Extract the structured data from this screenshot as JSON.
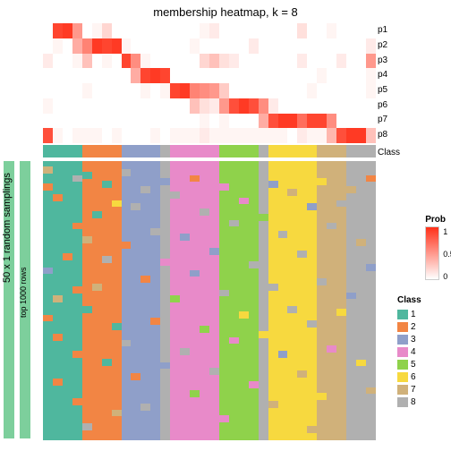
{
  "title": "membership heatmap, k = 8",
  "rowLabels": [
    "p1",
    "p2",
    "p3",
    "p4",
    "p5",
    "p6",
    "p7",
    "p8"
  ],
  "classLabel": "Class",
  "sideLabel1": "50 x 1 random samplings",
  "sideLabel2": "top 1000 rows",
  "classColors": {
    "1": "#4fb79e",
    "2": "#f28544",
    "3": "#8f9fc9",
    "4": "#e88ac9",
    "5": "#8fd24b",
    "6": "#f7d93f",
    "7": "#d0b17a",
    "8": "#b0b0b0"
  },
  "probLegend": {
    "title": "Prob",
    "ticks": [
      "1",
      "0.5",
      "0"
    ]
  },
  "classLegend": {
    "title": "Class",
    "items": [
      "1",
      "2",
      "3",
      "4",
      "5",
      "6",
      "7",
      "8"
    ]
  },
  "membershipCols": 34,
  "membership": [
    [
      0,
      0.9,
      0.95,
      0.5,
      0,
      0.05,
      0.2,
      0,
      0,
      0,
      0,
      0,
      0,
      0,
      0,
      0,
      0.05,
      0.1,
      0,
      0,
      0,
      0,
      0,
      0,
      0,
      0,
      0.15,
      0,
      0,
      0.05,
      0,
      0,
      0,
      0
    ],
    [
      0,
      0.05,
      0,
      0.4,
      0.6,
      0.95,
      0.9,
      0.95,
      0.05,
      0,
      0,
      0,
      0,
      0,
      0,
      0.05,
      0,
      0,
      0,
      0,
      0,
      0.1,
      0,
      0,
      0,
      0,
      0,
      0,
      0,
      0,
      0,
      0,
      0,
      0.1
    ],
    [
      0.1,
      0,
      0,
      0.05,
      0.3,
      0,
      0.05,
      0,
      0.9,
      0.55,
      0.05,
      0,
      0,
      0,
      0,
      0,
      0.2,
      0.3,
      0.15,
      0.1,
      0,
      0,
      0,
      0,
      0,
      0,
      0.1,
      0,
      0,
      0,
      0.1,
      0,
      0,
      0.5
    ],
    [
      0,
      0,
      0,
      0,
      0,
      0,
      0,
      0,
      0,
      0.4,
      0.9,
      0.95,
      0.9,
      0,
      0,
      0,
      0,
      0,
      0,
      0,
      0,
      0,
      0,
      0,
      0,
      0,
      0,
      0,
      0.05,
      0,
      0,
      0,
      0,
      0.05
    ],
    [
      0,
      0,
      0,
      0,
      0.05,
      0,
      0,
      0,
      0,
      0,
      0.05,
      0,
      0.05,
      0.9,
      0.95,
      0.6,
      0.55,
      0.5,
      0.25,
      0,
      0,
      0,
      0,
      0,
      0,
      0,
      0,
      0.05,
      0,
      0,
      0,
      0,
      0,
      0.05
    ],
    [
      0.05,
      0,
      0,
      0,
      0,
      0,
      0,
      0,
      0,
      0,
      0,
      0,
      0,
      0,
      0,
      0.3,
      0.15,
      0.1,
      0.5,
      0.85,
      0.95,
      0.85,
      0.55,
      0.1,
      0,
      0,
      0,
      0,
      0,
      0,
      0,
      0,
      0,
      0
    ],
    [
      0,
      0,
      0,
      0,
      0,
      0,
      0,
      0,
      0,
      0,
      0,
      0,
      0,
      0,
      0,
      0,
      0.05,
      0,
      0.05,
      0,
      0,
      0,
      0.4,
      0.85,
      0.95,
      0.95,
      0.7,
      0.9,
      0.9,
      0.55,
      0,
      0,
      0,
      0
    ],
    [
      0.85,
      0.05,
      0,
      0.05,
      0.05,
      0.05,
      0,
      0.05,
      0,
      0,
      0,
      0.05,
      0,
      0.05,
      0.05,
      0.05,
      0.1,
      0.05,
      0.05,
      0.05,
      0.05,
      0.05,
      0.05,
      0.05,
      0.05,
      0,
      0.1,
      0.05,
      0.05,
      0.35,
      0.85,
      0.95,
      0.95,
      0.3
    ]
  ],
  "classRow": [
    "1",
    "1",
    "1",
    "1",
    "2",
    "2",
    "2",
    "2",
    "3",
    "3",
    "3",
    "3",
    "8",
    "4",
    "4",
    "4",
    "4",
    "4",
    "5",
    "5",
    "5",
    "5",
    "8",
    "6",
    "6",
    "6",
    "6",
    "6",
    "7",
    "7",
    "7",
    "8",
    "8",
    "8"
  ],
  "samplingCols": [
    {
      "c": "1",
      "noise": [
        [
          0.02,
          "7"
        ],
        [
          0.08,
          "2"
        ],
        [
          0.38,
          "3"
        ],
        [
          0.55,
          "2"
        ]
      ]
    },
    {
      "c": "1",
      "noise": [
        [
          0.12,
          "2"
        ],
        [
          0.48,
          "7"
        ],
        [
          0.62,
          "2"
        ],
        [
          0.78,
          "2"
        ]
      ]
    },
    {
      "c": "1",
      "noise": [
        [
          0.33,
          "2"
        ]
      ]
    },
    {
      "c": "1",
      "noise": [
        [
          0.05,
          "8"
        ],
        [
          0.22,
          "2"
        ],
        [
          0.45,
          "2"
        ],
        [
          0.68,
          "2"
        ],
        [
          0.85,
          "2"
        ]
      ]
    },
    {
      "c": "2",
      "noise": [
        [
          0.04,
          "1"
        ],
        [
          0.27,
          "7"
        ],
        [
          0.52,
          "1"
        ],
        [
          0.94,
          "8"
        ]
      ]
    },
    {
      "c": "2",
      "noise": [
        [
          0.18,
          "1"
        ],
        [
          0.44,
          "7"
        ]
      ]
    },
    {
      "c": "2",
      "noise": [
        [
          0.07,
          "1"
        ],
        [
          0.34,
          "8"
        ],
        [
          0.71,
          "1"
        ]
      ]
    },
    {
      "c": "2",
      "noise": [
        [
          0.14,
          "6"
        ],
        [
          0.58,
          "1"
        ],
        [
          0.89,
          "7"
        ]
      ]
    },
    {
      "c": "3",
      "noise": [
        [
          0.03,
          "8"
        ],
        [
          0.29,
          "2"
        ],
        [
          0.64,
          "8"
        ]
      ]
    },
    {
      "c": "3",
      "noise": [
        [
          0.15,
          "8"
        ],
        [
          0.76,
          "2"
        ]
      ]
    },
    {
      "c": "3",
      "noise": [
        [
          0.09,
          "8"
        ],
        [
          0.41,
          "2"
        ],
        [
          0.87,
          "8"
        ]
      ]
    },
    {
      "c": "3",
      "noise": [
        [
          0.24,
          "8"
        ],
        [
          0.56,
          "2"
        ]
      ]
    },
    {
      "c": "8",
      "noise": [
        [
          0.06,
          "3"
        ],
        [
          0.35,
          "4"
        ],
        [
          0.72,
          "3"
        ]
      ]
    },
    {
      "c": "4",
      "noise": [
        [
          0.11,
          "8"
        ],
        [
          0.48,
          "5"
        ]
      ]
    },
    {
      "c": "4",
      "noise": [
        [
          0.26,
          "3"
        ],
        [
          0.67,
          "8"
        ]
      ]
    },
    {
      "c": "4",
      "noise": [
        [
          0.05,
          "2"
        ],
        [
          0.39,
          "3"
        ],
        [
          0.82,
          "5"
        ]
      ]
    },
    {
      "c": "4",
      "noise": [
        [
          0.17,
          "8"
        ],
        [
          0.59,
          "5"
        ]
      ]
    },
    {
      "c": "4",
      "noise": [
        [
          0.31,
          "3"
        ],
        [
          0.74,
          "8"
        ]
      ]
    },
    {
      "c": "5",
      "noise": [
        [
          0.08,
          "4"
        ],
        [
          0.46,
          "8"
        ],
        [
          0.91,
          "4"
        ]
      ]
    },
    {
      "c": "5",
      "noise": [
        [
          0.21,
          "8"
        ],
        [
          0.63,
          "4"
        ]
      ]
    },
    {
      "c": "5",
      "noise": [
        [
          0.13,
          "4"
        ],
        [
          0.54,
          "6"
        ]
      ]
    },
    {
      "c": "5",
      "noise": [
        [
          0.36,
          "8"
        ],
        [
          0.79,
          "4"
        ]
      ]
    },
    {
      "c": "8",
      "noise": [
        [
          0.19,
          "5"
        ],
        [
          0.61,
          "6"
        ]
      ]
    },
    {
      "c": "6",
      "noise": [
        [
          0.07,
          "3"
        ],
        [
          0.44,
          "8"
        ],
        [
          0.86,
          "7"
        ]
      ]
    },
    {
      "c": "6",
      "noise": [
        [
          0.25,
          "8"
        ],
        [
          0.68,
          "3"
        ]
      ]
    },
    {
      "c": "6",
      "noise": [
        [
          0.1,
          "7"
        ],
        [
          0.52,
          "8"
        ]
      ]
    },
    {
      "c": "6",
      "noise": [
        [
          0.32,
          "8"
        ],
        [
          0.75,
          "7"
        ]
      ]
    },
    {
      "c": "6",
      "noise": [
        [
          0.15,
          "3"
        ],
        [
          0.57,
          "8"
        ],
        [
          0.95,
          "7"
        ]
      ]
    },
    {
      "c": "7",
      "noise": [
        [
          0.06,
          "6"
        ],
        [
          0.42,
          "8"
        ],
        [
          0.83,
          "6"
        ]
      ]
    },
    {
      "c": "7",
      "noise": [
        [
          0.22,
          "8"
        ],
        [
          0.66,
          "4"
        ]
      ]
    },
    {
      "c": "7",
      "noise": [
        [
          0.14,
          "8"
        ],
        [
          0.53,
          "6"
        ]
      ]
    },
    {
      "c": "8",
      "noise": [
        [
          0.09,
          "7"
        ],
        [
          0.47,
          "3"
        ]
      ]
    },
    {
      "c": "8",
      "noise": [
        [
          0.28,
          "7"
        ],
        [
          0.71,
          "6"
        ]
      ]
    },
    {
      "c": "8",
      "noise": [
        [
          0.05,
          "2"
        ],
        [
          0.37,
          "3"
        ],
        [
          0.81,
          "7"
        ]
      ]
    }
  ]
}
